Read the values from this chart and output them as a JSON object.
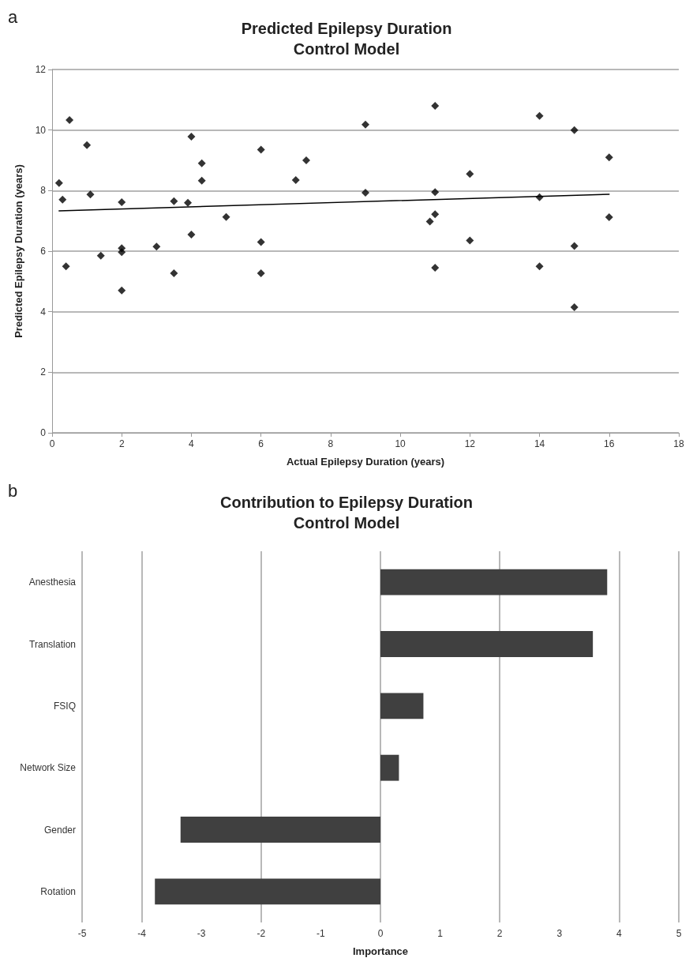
{
  "chart_data": [
    {
      "type": "scatter",
      "title": "Predicted Epilepsy Duration\nControl Model",
      "annotations": [
        "a"
      ],
      "xlabel": "Actual Epilepsy Duration (years)",
      "ylabel": "Predicted Epilepsy Duration (years)",
      "xlim": [
        0,
        18
      ],
      "xticks": [
        0,
        2,
        4,
        6,
        8,
        10,
        12,
        14,
        16,
        18
      ],
      "ylim": [
        0,
        12
      ],
      "yticks": [
        0,
        2,
        4,
        6,
        8,
        10,
        12
      ],
      "grid": "y",
      "marker": "diamond",
      "series": [
        {
          "color": "#000000",
          "x": [
            0.2,
            0.3,
            0.4,
            0.5,
            1.0,
            1.1,
            1.4,
            2,
            2,
            2,
            2,
            3,
            3.5,
            3.5,
            3.9,
            4,
            4,
            4.3,
            4.3,
            5,
            6,
            6,
            6,
            7,
            7.3,
            9,
            9,
            11,
            11,
            11,
            10.85,
            11,
            12,
            12,
            14,
            14,
            14,
            15,
            15,
            15,
            16,
            16
          ],
          "values": [
            8.25,
            7.7,
            5.5,
            10.33,
            9.5,
            7.87,
            5.85,
            7.62,
            6.1,
            5.97,
            4.7,
            6.15,
            5.27,
            7.65,
            7.6,
            9.78,
            6.55,
            8.9,
            8.33,
            7.13,
            9.35,
            6.3,
            5.27,
            8.35,
            9.0,
            10.18,
            7.93,
            10.8,
            7.95,
            7.22,
            6.98,
            5.45,
            8.55,
            6.35,
            10.47,
            7.78,
            5.5,
            10.0,
            6.17,
            4.15,
            9.1,
            7.12
          ]
        },
        {
          "type": "line",
          "color": "#000000",
          "marker": "none",
          "line_style": "solid",
          "x": [
            0.2,
            16
          ],
          "values": [
            7.33,
            7.88
          ]
        }
      ]
    },
    {
      "type": "bar",
      "orientation": "horizontal",
      "title": "Contribution to Epilepsy Duration\nControl Model",
      "annotations": [
        "b"
      ],
      "xlabel": "Importance",
      "categories": [
        "Anesthesia",
        "Translation",
        "FSIQ",
        "Network Size",
        "Gender",
        "Rotation"
      ],
      "values": [
        3.8,
        3.56,
        0.72,
        0.31,
        -3.35,
        -3.78
      ],
      "color": "#404040",
      "xlim": [
        -5,
        5
      ],
      "xticks": [
        -5,
        -4,
        -3,
        -2,
        -1,
        0,
        1,
        2,
        3,
        4,
        5
      ],
      "grid": "x"
    }
  ]
}
